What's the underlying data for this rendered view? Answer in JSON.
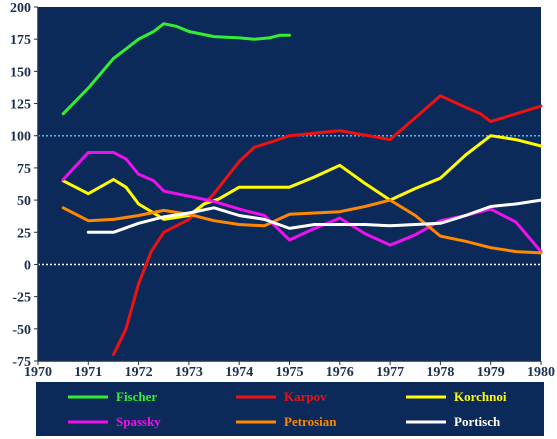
{
  "chart_data": {
    "type": "line",
    "title": "",
    "xlabel": "",
    "ylabel": "",
    "xlim": [
      1970,
      1980
    ],
    "ylim": [
      -75,
      200
    ],
    "x_ticks": [
      "1970",
      "1971",
      "1972",
      "1973",
      "1974",
      "1975",
      "1976",
      "1977",
      "1978",
      "1979",
      "1980"
    ],
    "y_ticks": [
      "-75",
      "-50",
      "-25",
      "0",
      "25",
      "50",
      "75",
      "100",
      "125",
      "150",
      "175",
      "200"
    ],
    "grid": false,
    "reference_lines": [
      {
        "y": 100,
        "color": "#33ccff",
        "style": "dotted"
      },
      {
        "y": 0,
        "color": "#ffffff",
        "style": "dotted"
      }
    ],
    "legend_position": "bottom",
    "colors": {
      "plot_background": "#0b2a5a",
      "axis_text": "#1b2f4f"
    },
    "series": [
      {
        "name": "Fischer",
        "color": "#33ee33",
        "points": [
          [
            1970.5,
            117
          ],
          [
            1971,
            137
          ],
          [
            1971.5,
            160
          ],
          [
            1972,
            175
          ],
          [
            1972.3,
            181
          ],
          [
            1972.5,
            187
          ],
          [
            1972.75,
            185
          ],
          [
            1973,
            181
          ],
          [
            1973.5,
            177
          ],
          [
            1974,
            176
          ],
          [
            1974.3,
            175
          ],
          [
            1974.6,
            176
          ],
          [
            1974.8,
            178
          ],
          [
            1975,
            178
          ]
        ]
      },
      {
        "name": "Karpov",
        "color": "#ee1111",
        "points": [
          [
            1971.5,
            -70
          ],
          [
            1971.75,
            -50
          ],
          [
            1972,
            -15
          ],
          [
            1972.25,
            10
          ],
          [
            1972.5,
            25
          ],
          [
            1973,
            35
          ],
          [
            1973.5,
            55
          ],
          [
            1974,
            80
          ],
          [
            1974.3,
            91
          ],
          [
            1974.7,
            96
          ],
          [
            1975,
            100
          ],
          [
            1976,
            104
          ],
          [
            1977,
            97
          ],
          [
            1977.5,
            114
          ],
          [
            1978,
            131
          ],
          [
            1978.5,
            122
          ],
          [
            1978.8,
            117
          ],
          [
            1979,
            111
          ],
          [
            1980,
            123
          ]
        ]
      },
      {
        "name": "Korchnoi",
        "color": "#ffff00",
        "points": [
          [
            1970.5,
            65
          ],
          [
            1971,
            55
          ],
          [
            1971.5,
            66
          ],
          [
            1971.75,
            60
          ],
          [
            1972,
            47
          ],
          [
            1972.3,
            40
          ],
          [
            1972.5,
            35
          ],
          [
            1973,
            38
          ],
          [
            1973.3,
            47
          ],
          [
            1973.6,
            51
          ],
          [
            1974,
            60
          ],
          [
            1974.5,
            60
          ],
          [
            1975,
            60
          ],
          [
            1975.5,
            68
          ],
          [
            1976,
            77
          ],
          [
            1976.5,
            63
          ],
          [
            1977,
            50
          ],
          [
            1977.5,
            59
          ],
          [
            1978,
            67
          ],
          [
            1978.5,
            85
          ],
          [
            1979,
            100
          ],
          [
            1979.5,
            97
          ],
          [
            1980,
            92
          ]
        ]
      },
      {
        "name": "Spassky",
        "color": "#ee11ee",
        "points": [
          [
            1970.5,
            66
          ],
          [
            1971,
            87
          ],
          [
            1971.5,
            87
          ],
          [
            1971.75,
            82
          ],
          [
            1972,
            70
          ],
          [
            1972.3,
            65
          ],
          [
            1972.5,
            57
          ],
          [
            1973,
            53
          ],
          [
            1973.5,
            49
          ],
          [
            1974,
            43
          ],
          [
            1974.5,
            38
          ],
          [
            1975,
            19
          ],
          [
            1975.5,
            28
          ],
          [
            1976,
            36
          ],
          [
            1976.5,
            24
          ],
          [
            1977,
            15
          ],
          [
            1977.5,
            23
          ],
          [
            1978,
            34
          ],
          [
            1978.5,
            38
          ],
          [
            1979,
            43
          ],
          [
            1979.5,
            33
          ],
          [
            1980,
            10
          ]
        ]
      },
      {
        "name": "Petrosian",
        "color": "#ff8800",
        "points": [
          [
            1970.5,
            44
          ],
          [
            1971,
            34
          ],
          [
            1971.5,
            35
          ],
          [
            1972,
            38
          ],
          [
            1972.5,
            42
          ],
          [
            1973,
            39
          ],
          [
            1973.5,
            34
          ],
          [
            1974,
            31
          ],
          [
            1974.5,
            30
          ],
          [
            1975,
            39
          ],
          [
            1975.5,
            40
          ],
          [
            1976,
            41
          ],
          [
            1976.5,
            45
          ],
          [
            1977,
            50
          ],
          [
            1977.5,
            38
          ],
          [
            1978,
            22
          ],
          [
            1978.5,
            18
          ],
          [
            1979,
            13
          ],
          [
            1979.5,
            10
          ],
          [
            1980,
            9
          ]
        ]
      },
      {
        "name": "Portisch",
        "color": "#ffffff",
        "points": [
          [
            1971,
            25
          ],
          [
            1971.5,
            25
          ],
          [
            1972,
            32
          ],
          [
            1972.5,
            37
          ],
          [
            1973,
            40
          ],
          [
            1973.5,
            44
          ],
          [
            1974,
            38
          ],
          [
            1974.5,
            35
          ],
          [
            1975,
            28
          ],
          [
            1975.5,
            31
          ],
          [
            1976,
            31
          ],
          [
            1976.5,
            31
          ],
          [
            1977,
            30
          ],
          [
            1977.5,
            31
          ],
          [
            1978,
            32
          ],
          [
            1978.5,
            38
          ],
          [
            1979,
            45
          ],
          [
            1979.5,
            47
          ],
          [
            1980,
            50
          ]
        ]
      }
    ]
  }
}
